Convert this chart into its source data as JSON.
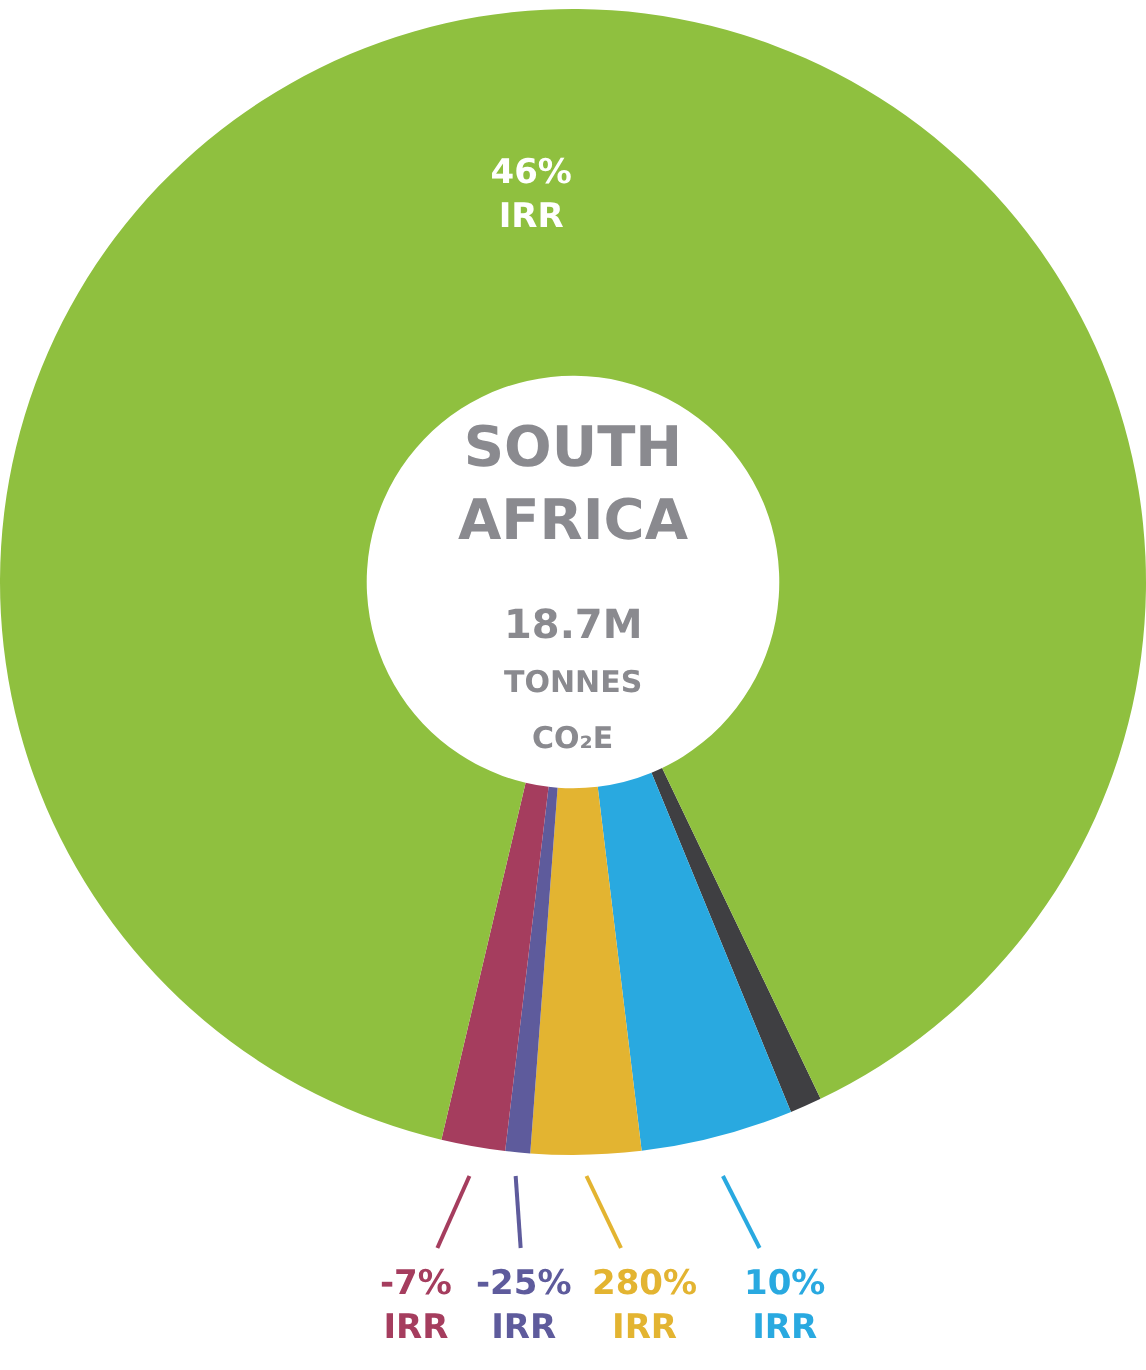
{
  "chart_data": {
    "type": "donut",
    "title": "SOUTH\nAFRICA",
    "annotations": [
      "18.7M",
      "TONNES",
      "CO₂E"
    ],
    "categories": [
      null,
      "10%\nIRR",
      "280%\nIRR",
      "-25%\nIRR",
      "-7%\nIRR",
      "46%\nIRR"
    ],
    "values": [
      0.9,
      4.3,
      3.1,
      0.7,
      1.8,
      89.2
    ],
    "colors": [
      "#3f3f42",
      "#29a9e0",
      "#e3b431",
      "#5e5b9c",
      "#a53d5e",
      "#8fc03f"
    ]
  }
}
